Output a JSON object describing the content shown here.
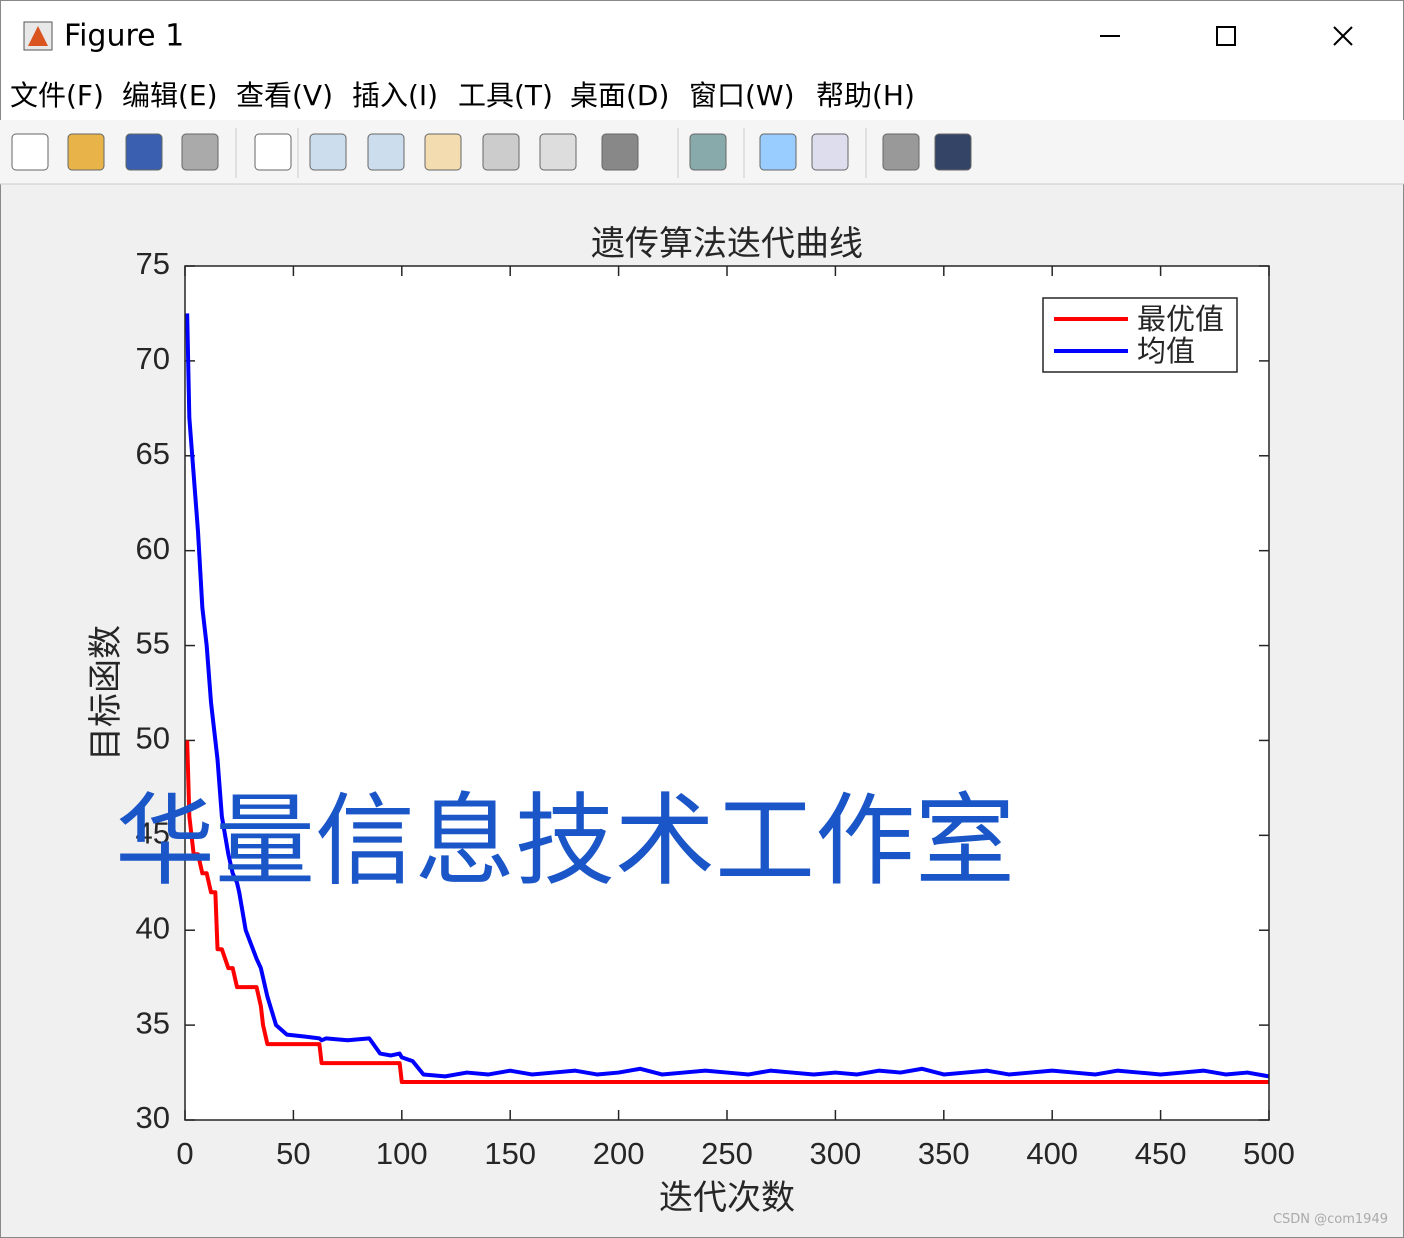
{
  "window": {
    "title": "Figure 1",
    "menu": [
      "文件(F)",
      "编辑(E)",
      "查看(V)",
      "插入(I)",
      "工具(T)",
      "桌面(D)",
      "窗口(W)",
      "帮助(H)"
    ],
    "credit": "CSDN @com1949"
  },
  "chart_data": {
    "type": "line",
    "title": "遗传算法迭代曲线",
    "x_label": "迭代次数",
    "y_label": "目标函数",
    "annotation": "华量信息技术工作室",
    "x": [
      1,
      2,
      4,
      6,
      8,
      10,
      12,
      14,
      15,
      17,
      20,
      22,
      24,
      25,
      28,
      33,
      35,
      36,
      38,
      42,
      47,
      55,
      62,
      63,
      65,
      75,
      85,
      90,
      95,
      99,
      100,
      105,
      110,
      120,
      130,
      140,
      150,
      160,
      170,
      180,
      190,
      200,
      210,
      220,
      230,
      240,
      250,
      260,
      270,
      280,
      290,
      300,
      310,
      320,
      330,
      340,
      350,
      360,
      370,
      380,
      390,
      400,
      410,
      420,
      430,
      440,
      450,
      460,
      470,
      480,
      490,
      500
    ],
    "series": [
      {
        "name": "最优值",
        "color": "#ff0000",
        "values": [
          50,
          46,
          44,
          44,
          43,
          43,
          42,
          42,
          39,
          39,
          38,
          38,
          37,
          37,
          37,
          37,
          36,
          35,
          34,
          34,
          34,
          34,
          34,
          33,
          33,
          33,
          33,
          33,
          33,
          33,
          32,
          32,
          32,
          32,
          32,
          32,
          32,
          32,
          32,
          32,
          32,
          32,
          32,
          32,
          32,
          32,
          32,
          32,
          32,
          32,
          32,
          32,
          32,
          32,
          32,
          32,
          32,
          32,
          32,
          32,
          32,
          32,
          32,
          32,
          32,
          32,
          32,
          32,
          32,
          32,
          32,
          32
        ]
      },
      {
        "name": "均值",
        "color": "#0000ff",
        "values": [
          72.5,
          67,
          64,
          61,
          57,
          55,
          52,
          50,
          49,
          46,
          44,
          43,
          42.5,
          42,
          40,
          38.5,
          38,
          37.5,
          36.5,
          35,
          34.5,
          34.4,
          34.3,
          34.2,
          34.3,
          34.2,
          34.3,
          33.5,
          33.4,
          33.5,
          33.3,
          33.1,
          32.4,
          32.3,
          32.5,
          32.4,
          32.6,
          32.4,
          32.5,
          32.6,
          32.4,
          32.5,
          32.7,
          32.4,
          32.5,
          32.6,
          32.5,
          32.4,
          32.6,
          32.5,
          32.4,
          32.5,
          32.4,
          32.6,
          32.5,
          32.7,
          32.4,
          32.5,
          32.6,
          32.4,
          32.5,
          32.6,
          32.5,
          32.4,
          32.6,
          32.5,
          32.4,
          32.5,
          32.6,
          32.4,
          32.5,
          32.3
        ]
      }
    ],
    "xlim": [
      0,
      500
    ],
    "xticks": [
      0,
      50,
      100,
      150,
      200,
      250,
      300,
      350,
      400,
      450,
      500
    ],
    "ylim": [
      30,
      75
    ],
    "yticks": [
      30,
      35,
      40,
      45,
      50,
      55,
      60,
      65,
      70,
      75
    ],
    "legend": "northeast"
  }
}
